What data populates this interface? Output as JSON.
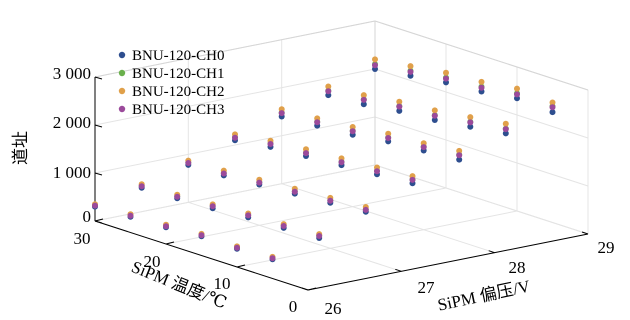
{
  "chart_data": {
    "type": "scatter3d",
    "zlabel": "道址",
    "xlabel": "SiPM 偏压/V",
    "ylabel": "SiPM 温度/℃",
    "x_ticks": [
      "26",
      "27",
      "28",
      "29"
    ],
    "y_ticks": [
      "0",
      "10",
      "20",
      "30"
    ],
    "z_ticks": [
      "0",
      "1 000",
      "2 000",
      "3 000"
    ],
    "xlim": [
      26,
      29
    ],
    "ylim": [
      0,
      30
    ],
    "zlim": [
      0,
      3000
    ],
    "grid": true,
    "legend_position": "top-left",
    "temperatures": [
      5,
      10,
      15,
      20,
      25,
      30
    ],
    "biases": [
      26.0,
      26.5,
      27.0,
      27.5,
      28.0,
      28.5,
      29.0
    ],
    "series": [
      {
        "name": "BNU-120-CH0",
        "color": "#2e4e8f",
        "values": [
          [
            400,
            650,
            1000,
            1400,
            1700,
            2050,
            2300
          ],
          [
            380,
            620,
            950,
            1350,
            1650,
            1950,
            2350
          ],
          [
            400,
            600,
            900,
            1300,
            1600,
            1850,
            2250
          ],
          [
            350,
            550,
            850,
            1250,
            1500,
            1800,
            2200
          ],
          [
            330,
            520,
            800,
            1200,
            1450,
            1700,
            2100
          ],
          [
            300,
            500,
            780,
            1100,
            1400,
            1650,
            2000
          ]
        ]
      },
      {
        "name": "BNU-120-CH1",
        "color": "#6ab04c",
        "values": [
          [
            430,
            700,
            1050,
            1480,
            1800,
            2150,
            2420
          ],
          [
            410,
            670,
            1000,
            1420,
            1730,
            2050,
            2450
          ],
          [
            430,
            650,
            950,
            1370,
            1680,
            1950,
            2350
          ],
          [
            380,
            600,
            900,
            1320,
            1580,
            1900,
            2300
          ],
          [
            360,
            560,
            850,
            1270,
            1530,
            1800,
            2200
          ],
          [
            330,
            540,
            830,
            1160,
            1480,
            1740,
            2100
          ]
        ]
      },
      {
        "name": "BNU-120-CH2",
        "color": "#e0a04a",
        "values": [
          [
            450,
            730,
            1100,
            1550,
            1880,
            2250,
            2500
          ],
          [
            430,
            700,
            1050,
            1490,
            1800,
            2150,
            2550
          ],
          [
            450,
            680,
            1000,
            1440,
            1760,
            2050,
            2450
          ],
          [
            400,
            630,
            950,
            1390,
            1660,
            1990,
            2400
          ],
          [
            380,
            590,
            900,
            1330,
            1600,
            1890,
            2300
          ],
          [
            350,
            570,
            870,
            1220,
            1550,
            1830,
            2200
          ]
        ]
      },
      {
        "name": "BNU-120-CH3",
        "color": "#9b4a9b",
        "values": [
          [
            420,
            690,
            1040,
            1470,
            1790,
            2140,
            2400
          ],
          [
            400,
            660,
            990,
            1410,
            1720,
            2040,
            2430
          ],
          [
            420,
            640,
            940,
            1360,
            1670,
            1940,
            2330
          ],
          [
            370,
            590,
            890,
            1310,
            1570,
            1890,
            2280
          ],
          [
            350,
            550,
            840,
            1260,
            1520,
            1790,
            2180
          ],
          [
            320,
            530,
            820,
            1150,
            1470,
            1730,
            2080
          ]
        ]
      }
    ]
  }
}
